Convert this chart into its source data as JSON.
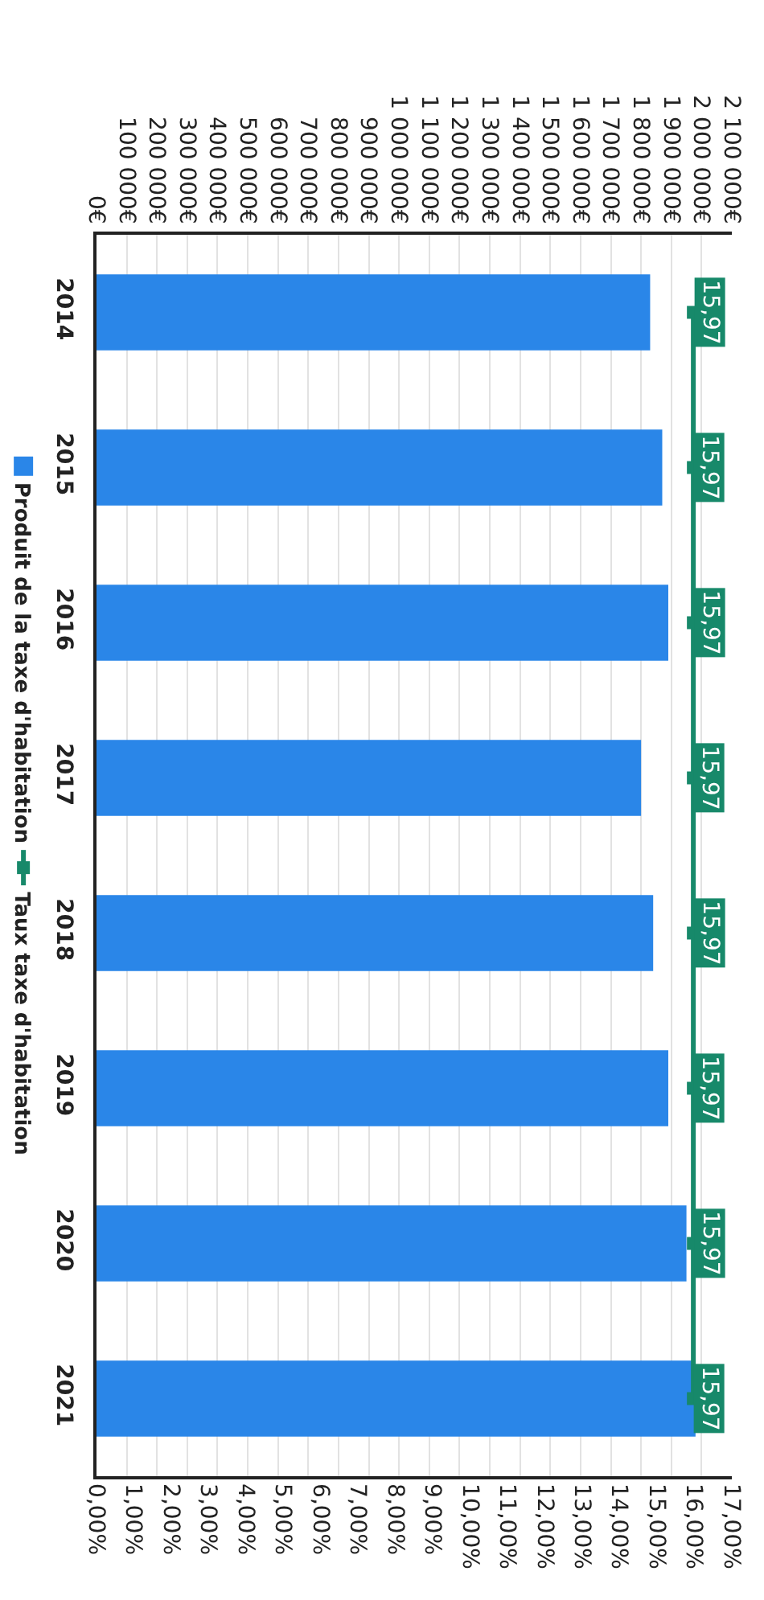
{
  "chart_data": {
    "type": "bar",
    "orientation": "horizontal",
    "categories": [
      "2014",
      "2015",
      "2016",
      "2017",
      "2018",
      "2019",
      "2020",
      "2021"
    ],
    "series": [
      {
        "name": "Produit de la taxe d'habitation",
        "color": "#2a86e8",
        "values": [
          1830000,
          1870000,
          1890000,
          1800000,
          1840000,
          1890000,
          1950000,
          1980000
        ]
      },
      {
        "name": "Taux taxe d'habitation",
        "type": "line",
        "axis": "x2",
        "color": "#17896a",
        "values": [
          15.97,
          15.97,
          15.97,
          15.97,
          15.97,
          15.97,
          15.97,
          15.97
        ],
        "value_labels": [
          "15,97",
          "15,97",
          "15,97",
          "15,97",
          "15,97",
          "15,97",
          "15,97",
          "15,97"
        ]
      }
    ],
    "xlim": [
      0,
      2100000
    ],
    "xticks": [
      {
        "value": 0,
        "label": "0€"
      },
      {
        "value": 100000,
        "label": "100 000€"
      },
      {
        "value": 200000,
        "label": "200 000€"
      },
      {
        "value": 300000,
        "label": "300 000€"
      },
      {
        "value": 400000,
        "label": "400 000€"
      },
      {
        "value": 500000,
        "label": "500 000€"
      },
      {
        "value": 600000,
        "label": "600 000€"
      },
      {
        "value": 700000,
        "label": "700 000€"
      },
      {
        "value": 800000,
        "label": "800 000€"
      },
      {
        "value": 900000,
        "label": "900 000€"
      },
      {
        "value": 1000000,
        "label": "1 000 000€"
      },
      {
        "value": 1100000,
        "label": "1 100 000€"
      },
      {
        "value": 1200000,
        "label": "1 200 000€"
      },
      {
        "value": 1300000,
        "label": "1 300 000€"
      },
      {
        "value": 1400000,
        "label": "1 400 000€"
      },
      {
        "value": 1500000,
        "label": "1 500 000€"
      },
      {
        "value": 1600000,
        "label": "1 600 000€"
      },
      {
        "value": 1700000,
        "label": "1 700 000€"
      },
      {
        "value": 1800000,
        "label": "1 800 000€"
      },
      {
        "value": 1900000,
        "label": "1 900 000€"
      },
      {
        "value": 2000000,
        "label": "2 000 000€"
      },
      {
        "value": 2100000,
        "label": "2 100 000€"
      }
    ],
    "x2lim": [
      0,
      17
    ],
    "x2ticks": [
      {
        "value": 0,
        "label": "0,00%"
      },
      {
        "value": 1,
        "label": "1,00%"
      },
      {
        "value": 2,
        "label": "2,00%"
      },
      {
        "value": 3,
        "label": "3,00%"
      },
      {
        "value": 4,
        "label": "4,00%"
      },
      {
        "value": 5,
        "label": "5,00%"
      },
      {
        "value": 6,
        "label": "6,00%"
      },
      {
        "value": 7,
        "label": "7,00%"
      },
      {
        "value": 8,
        "label": "8,00%"
      },
      {
        "value": 9,
        "label": "9,00%"
      },
      {
        "value": 10,
        "label": "10,00%"
      },
      {
        "value": 11,
        "label": "11,00%"
      },
      {
        "value": 12,
        "label": "12,00%"
      },
      {
        "value": 13,
        "label": "13,00%"
      },
      {
        "value": 14,
        "label": "14,00%"
      },
      {
        "value": 15,
        "label": "15,00%"
      },
      {
        "value": 16,
        "label": "16,00%"
      },
      {
        "value": 17,
        "label": "17,00%"
      }
    ],
    "grid": "x",
    "legend": "left",
    "marker": "square"
  }
}
